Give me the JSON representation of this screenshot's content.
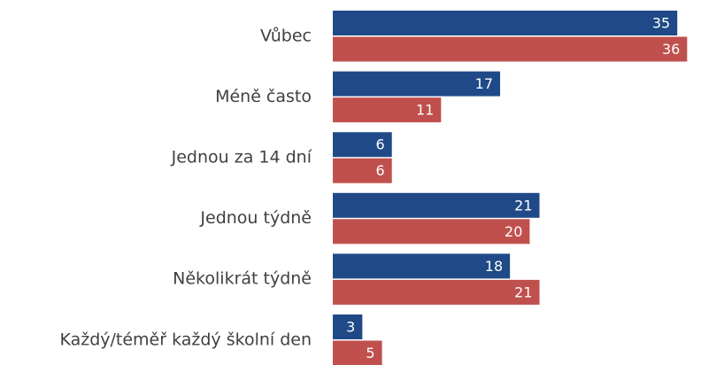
{
  "chart_data": {
    "type": "bar",
    "orientation": "horizontal",
    "categories": [
      "Vůbec",
      "Méně často",
      "Jednou za 14 dní",
      "Jednou týdně",
      "Několikrát týdně",
      "Každý/téměř každý školní den"
    ],
    "series": [
      {
        "color": "#1f4a87",
        "values": [
          35,
          17,
          6,
          21,
          18,
          3
        ]
      },
      {
        "color": "#c0504d",
        "values": [
          36,
          11,
          6,
          20,
          21,
          5
        ]
      }
    ],
    "grid": false
  }
}
